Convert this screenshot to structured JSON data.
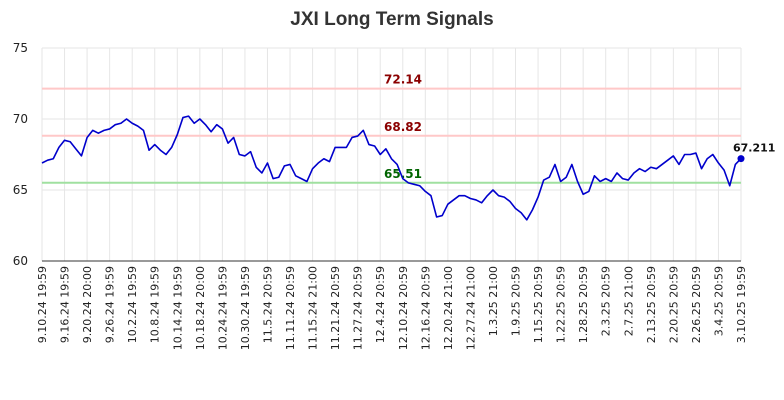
{
  "chart_data": {
    "type": "line",
    "title": "JXI Long Term Signals",
    "xlabel": "",
    "ylabel": "",
    "ylim": [
      60,
      75
    ],
    "yticks": [
      60,
      65,
      70,
      75
    ],
    "grid": true,
    "line_color": "#0000cc",
    "xtick_labels": [
      "9.10.24 19:59",
      "9.16.24 19:59",
      "9.20.24 20:00",
      "9.26.24 19:59",
      "10.2.24 19:59",
      "10.8.24 19:59",
      "10.14.24 19:59",
      "10.18.24 20:00",
      "10.24.24 19:59",
      "10.30.24 19:59",
      "11.5.24 20:59",
      "11.11.24 20:59",
      "11.15.24 21:00",
      "11.21.24 20:59",
      "11.27.24 20:59",
      "12.4.24 20:59",
      "12.10.24 20:59",
      "12.16.24 20:59",
      "12.20.24 21:00",
      "12.27.24 21:00",
      "1.3.25 21:00",
      "1.9.25 20:59",
      "1.15.25 20:59",
      "1.22.25 20:59",
      "1.28.25 20:59",
      "2.3.25 20:59",
      "2.7.25 21:00",
      "2.13.25 20:59",
      "2.20.25 20:59",
      "2.26.25 20:59",
      "3.4.25 20:59",
      "3.10.25 19:59"
    ],
    "reference_lines": [
      {
        "value": 72.14,
        "label": "72.14",
        "line_color": "#ffc8c8",
        "label_color": "#8b0000"
      },
      {
        "value": 68.82,
        "label": "68.82",
        "line_color": "#ffc8c8",
        "label_color": "#8b0000"
      },
      {
        "value": 65.51,
        "label": "65.51",
        "line_color": "#a0e0a0",
        "label_color": "#006400"
      }
    ],
    "last_value_label": "67.211",
    "series": [
      {
        "values": [
          66.9,
          67.1,
          67.2,
          68.0,
          68.5,
          68.4,
          67.9,
          67.4,
          68.7,
          69.2,
          69.0,
          69.2,
          69.3,
          69.6,
          69.7,
          70.0,
          69.7,
          69.5,
          69.2,
          67.8,
          68.2,
          67.8,
          67.5,
          68.0,
          68.9,
          70.1,
          70.2,
          69.7,
          70.0,
          69.6,
          69.1,
          69.6,
          69.3,
          68.3,
          68.7,
          67.5,
          67.4,
          67.7,
          66.6,
          66.2,
          66.9,
          65.8,
          65.9,
          66.7,
          66.8,
          66.0,
          65.8,
          65.6,
          66.5,
          66.9,
          67.2,
          67.0,
          68.0,
          68.0,
          68.0,
          68.7,
          68.8,
          69.2,
          68.2,
          68.1,
          67.5,
          67.9,
          67.2,
          66.8,
          65.8,
          65.5,
          65.4,
          65.3,
          64.9,
          64.6,
          63.1,
          63.2,
          64.0,
          64.3,
          64.6,
          64.6,
          64.4,
          64.3,
          64.1,
          64.6,
          65.0,
          64.6,
          64.5,
          64.2,
          63.7,
          63.4,
          62.9,
          63.6,
          64.5,
          65.7,
          65.9,
          66.8,
          65.6,
          65.9,
          66.8,
          65.6,
          64.7,
          64.9,
          66.0,
          65.6,
          65.8,
          65.6,
          66.2,
          65.8,
          65.7,
          66.2,
          66.5,
          66.3,
          66.6,
          66.5,
          66.8,
          67.1,
          67.4,
          66.8,
          67.5,
          67.5,
          67.6,
          66.5,
          67.2,
          67.5,
          66.9,
          66.4,
          65.3,
          66.8,
          67.211
        ]
      }
    ]
  }
}
